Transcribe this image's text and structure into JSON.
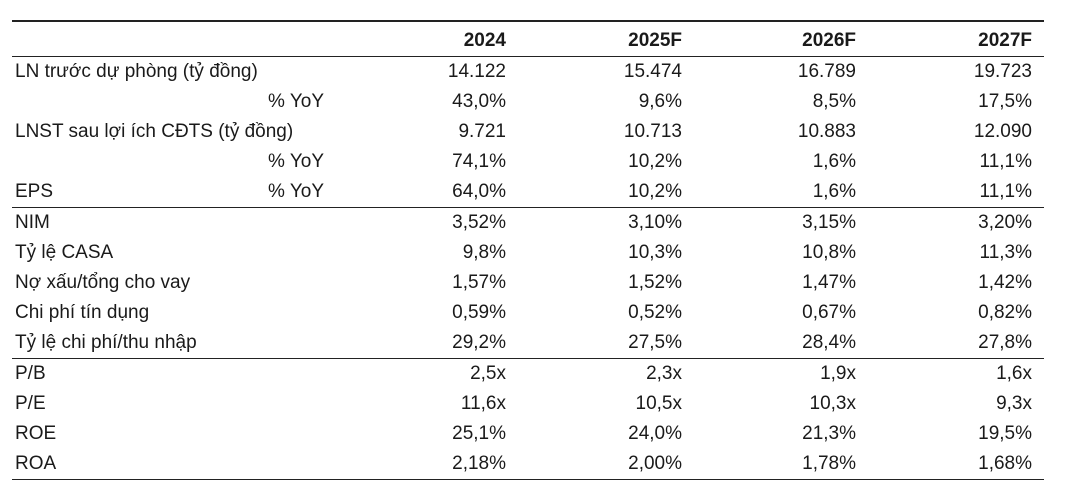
{
  "headers": [
    "",
    "2024",
    "2025F",
    "2026F",
    "2027F"
  ],
  "rows": [
    {
      "label": "LN trước dự phòng (tỷ đồng)",
      "sub": "",
      "values": [
        "14.122",
        "15.474",
        "16.789",
        "19.723"
      ]
    },
    {
      "label": "",
      "sub": "% YoY",
      "values": [
        "43,0%",
        "9,6%",
        "8,5%",
        "17,5%"
      ]
    },
    {
      "label": "LNST sau lợi ích CĐTS (tỷ đồng)",
      "sub": "",
      "values": [
        "9.721",
        "10.713",
        "10.883",
        "12.090"
      ]
    },
    {
      "label": "",
      "sub": "% YoY",
      "values": [
        "74,1%",
        "10,2%",
        "1,6%",
        "11,1%"
      ]
    },
    {
      "label": "EPS",
      "sub": "% YoY",
      "values": [
        "64,0%",
        "10,2%",
        "1,6%",
        "11,1%"
      ]
    },
    {
      "label": "NIM",
      "sub": "",
      "values": [
        "3,52%",
        "3,10%",
        "3,15%",
        "3,20%"
      ]
    },
    {
      "label": "Tỷ lệ CASA",
      "sub": "",
      "values": [
        "9,8%",
        "10,3%",
        "10,8%",
        "11,3%"
      ]
    },
    {
      "label": "Nợ xấu/tổng cho vay",
      "sub": "",
      "values": [
        "1,57%",
        "1,52%",
        "1,47%",
        "1,42%"
      ]
    },
    {
      "label": "Chi phí tín dụng",
      "sub": "",
      "values": [
        "0,59%",
        "0,52%",
        "0,67%",
        "0,82%"
      ]
    },
    {
      "label": "Tỷ lệ chi phí/thu nhập",
      "sub": "",
      "values": [
        "29,2%",
        "27,5%",
        "28,4%",
        "27,8%"
      ]
    },
    {
      "label": "P/B",
      "sub": "",
      "values": [
        "2,5x",
        "2,3x",
        "1,9x",
        "1,6x"
      ]
    },
    {
      "label": "P/E",
      "sub": "",
      "values": [
        "11,6x",
        "10,5x",
        "10,3x",
        "9,3x"
      ]
    },
    {
      "label": "ROE",
      "sub": "",
      "values": [
        "25,1%",
        "24,0%",
        "21,3%",
        "19,5%"
      ]
    },
    {
      "label": "ROA",
      "sub": "",
      "values": [
        "2,18%",
        "2,00%",
        "1,78%",
        "1,68%"
      ]
    }
  ]
}
